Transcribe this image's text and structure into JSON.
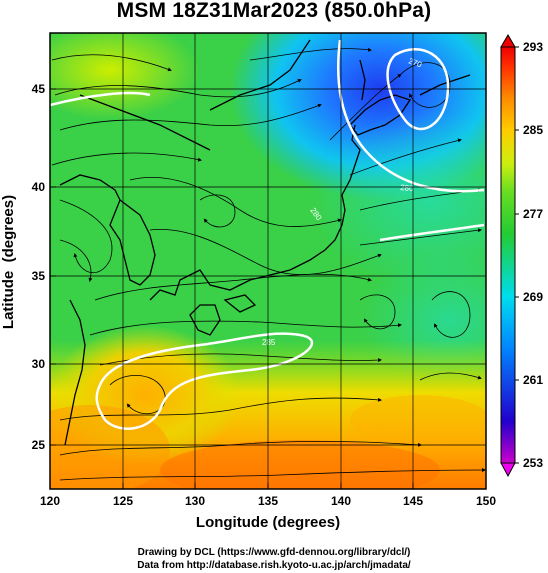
{
  "title": "MSM 18Z31Mar2023 (850.0hPa)",
  "x_axis": {
    "label": "Longitude (degrees)",
    "ticks": [
      "120",
      "125",
      "130",
      "135",
      "140",
      "145",
      "150"
    ],
    "range": [
      120,
      150
    ]
  },
  "y_axis": {
    "label": "Latitude  (degrees)",
    "ticks": [
      "25",
      "30",
      "35",
      "40",
      "45"
    ],
    "range": [
      23,
      48
    ]
  },
  "colorbar": {
    "labels": [
      "293",
      "285",
      "277",
      "269",
      "261",
      "253"
    ],
    "range": [
      253,
      293
    ],
    "colors": [
      "#cc00cc",
      "#2200cc",
      "#0088ff",
      "#00ddee",
      "#22cc33",
      "#66dd22",
      "#ccee11",
      "#ffcc00",
      "#ff8800",
      "#ff3300",
      "#ee0000"
    ]
  },
  "contour_labels": [
    "270",
    "280",
    "280",
    "285"
  ],
  "credits": {
    "line1": "Drawing by DCL (https://www.gfd-dennou.org/library/dcl/)",
    "line2": "Data from http://database.rish.kyoto-u.ac.jp/arch/jmadata/"
  }
}
